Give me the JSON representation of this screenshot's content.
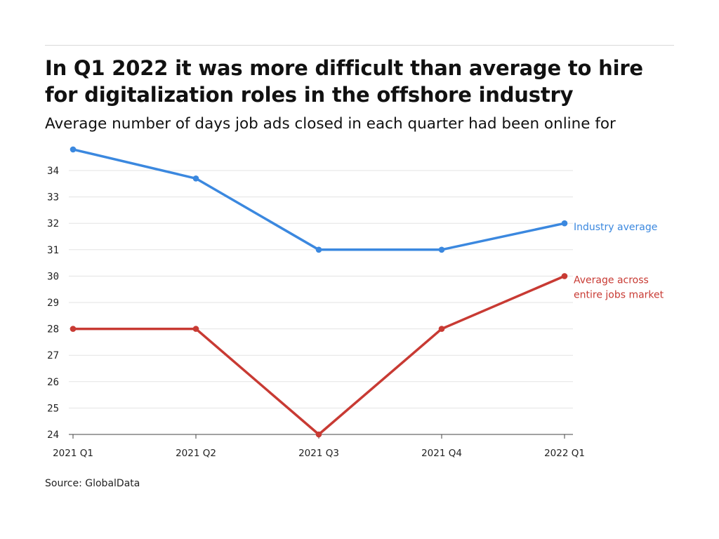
{
  "title": "In Q1 2022 it was more difficult than average to hire for digitalization roles in the offshore industry",
  "subtitle": "Average number of days job ads closed in each quarter had been online for",
  "source": "Source: GlobalData",
  "chart_data": {
    "type": "line",
    "title": "In Q1 2022 it was more difficult than average to hire for digitalization roles in the offshore industry",
    "subtitle": "Average number of days job ads closed in each quarter had been online for",
    "xlabel": "",
    "ylabel": "",
    "categories": [
      "2021 Q1",
      "2021 Q2",
      "2021 Q3",
      "2021 Q4",
      "2022 Q1"
    ],
    "y_ticks": [
      24,
      25,
      26,
      27,
      28,
      29,
      30,
      31,
      32,
      33,
      34
    ],
    "ylim": [
      24,
      35
    ],
    "grid": true,
    "legend": "inline labels at right end of each series",
    "series": [
      {
        "name": "Industry average",
        "label_lines": [
          "Industry average"
        ],
        "color": "#3b88df",
        "values": [
          34.8,
          33.7,
          31,
          31,
          32
        ]
      },
      {
        "name": "Average across entire jobs market",
        "label_lines": [
          "Average across",
          "entire jobs market"
        ],
        "color": "#c83a33",
        "values": [
          28,
          28,
          24,
          28,
          30
        ]
      }
    ]
  }
}
